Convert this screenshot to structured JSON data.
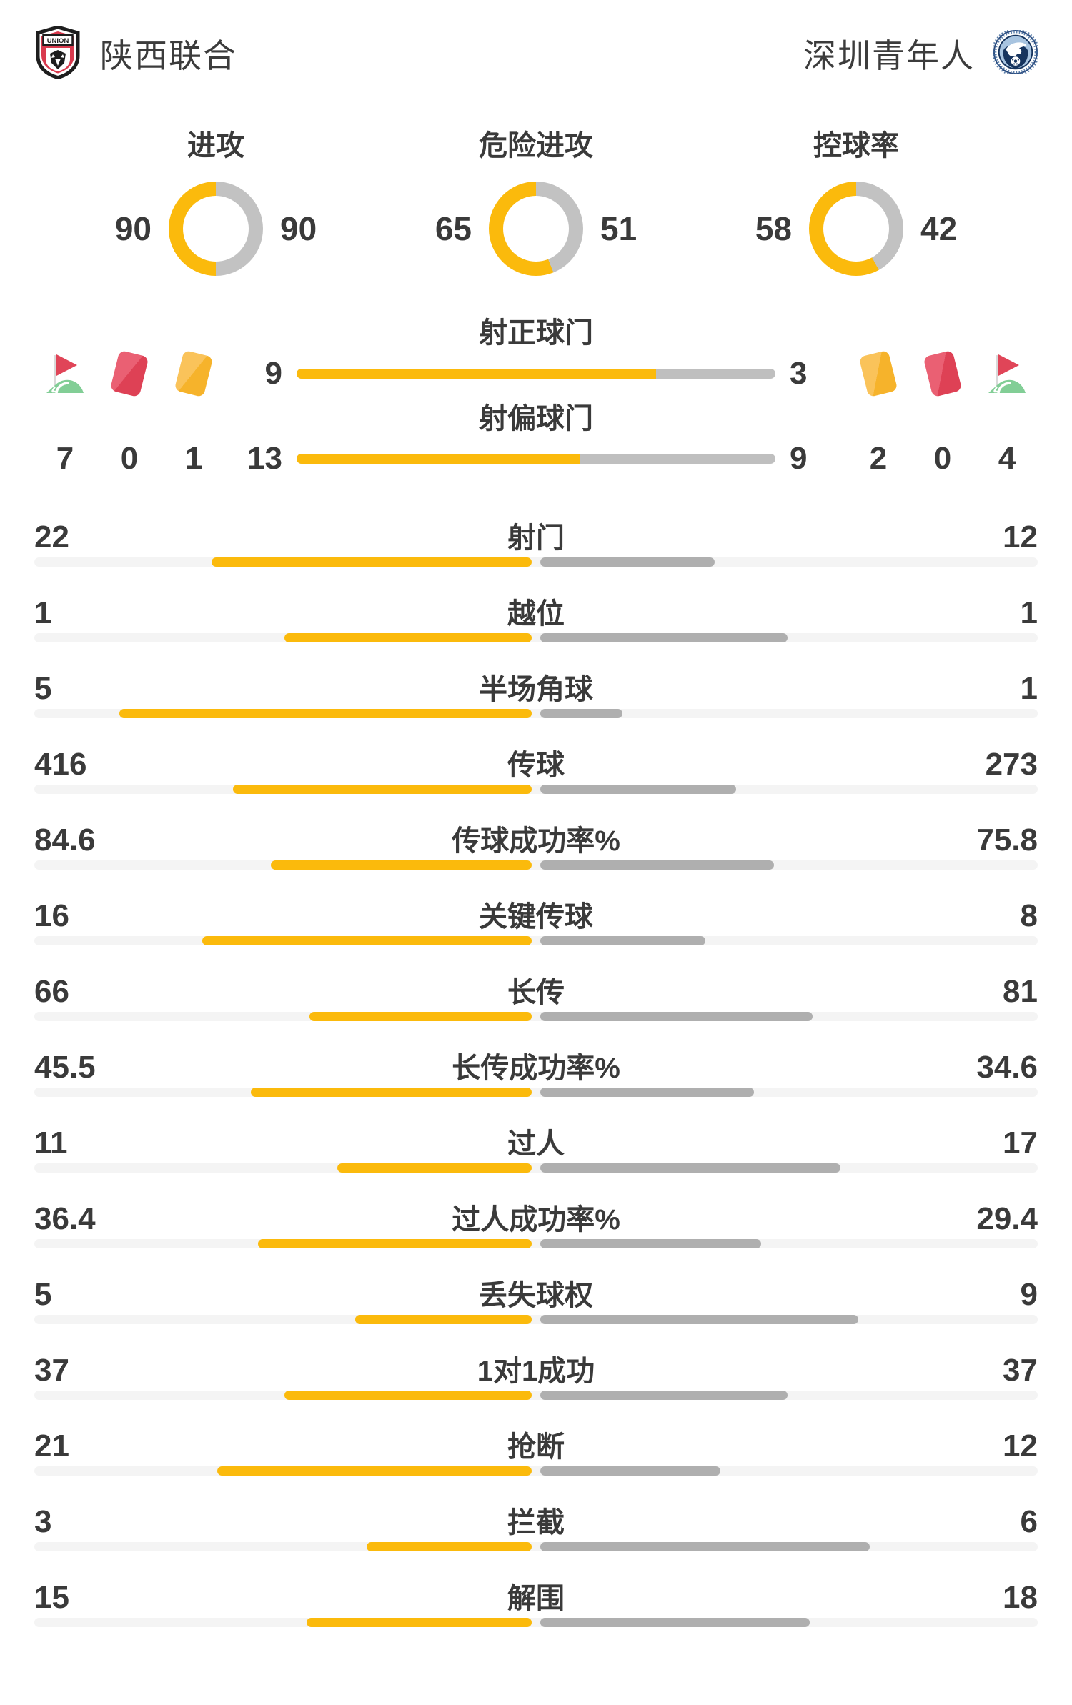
{
  "header": {
    "home_team": "陕西联合",
    "away_team": "深圳青年人"
  },
  "colors": {
    "accent_yellow": "#fbba0c",
    "neutral_gray": "#c2c2c2",
    "away_bar_gray": "#afafaf",
    "track_gray": "#f4f4f4",
    "text_dark": "#3a3a3a",
    "card_red": "#de4155",
    "card_yellow": "#f6b32b",
    "flag_red": "#e04558",
    "flag_green": "#82ce96",
    "home_logo_red": "#d93a4e",
    "away_logo_navy": "#16345e",
    "away_logo_blue": "#a8c4e0"
  },
  "chart_data": {
    "type": "comparison-bars",
    "teams": [
      "陕西联合",
      "深圳青年人"
    ],
    "donuts": [
      {
        "title": "进攻",
        "home": 90,
        "away": 90
      },
      {
        "title": "危险进攻",
        "home": 65,
        "away": 51
      },
      {
        "title": "控球率",
        "home": 58,
        "away": 42
      }
    ],
    "discipline": {
      "home": {
        "corners": 7,
        "red_cards": 0,
        "yellow_cards": 1
      },
      "away": {
        "corners": 4,
        "red_cards": 0,
        "yellow_cards": 2
      }
    },
    "center_bars": [
      {
        "title": "射正球门",
        "home": 9,
        "away": 3
      },
      {
        "title": "射偏球门",
        "home": 13,
        "away": 9
      }
    ],
    "stat_rows": [
      {
        "label": "射门",
        "home": 22,
        "away": 12
      },
      {
        "label": "越位",
        "home": 1,
        "away": 1
      },
      {
        "label": "半场角球",
        "home": 5,
        "away": 1
      },
      {
        "label": "传球",
        "home": 416,
        "away": 273
      },
      {
        "label": "传球成功率%",
        "home": 84.6,
        "away": 75.8
      },
      {
        "label": "关键传球",
        "home": 16,
        "away": 8
      },
      {
        "label": "长传",
        "home": 66,
        "away": 81
      },
      {
        "label": "长传成功率%",
        "home": 45.5,
        "away": 34.6
      },
      {
        "label": "过人",
        "home": 11,
        "away": 17
      },
      {
        "label": "过人成功率%",
        "home": 36.4,
        "away": 29.4
      },
      {
        "label": "丢失球权",
        "home": 5,
        "away": 9
      },
      {
        "label": "1对1成功",
        "home": 37,
        "away": 37
      },
      {
        "label": "抢断",
        "home": 21,
        "away": 12
      },
      {
        "label": "拦截",
        "home": 3,
        "away": 6
      },
      {
        "label": "解围",
        "home": 15,
        "away": 18
      }
    ]
  }
}
